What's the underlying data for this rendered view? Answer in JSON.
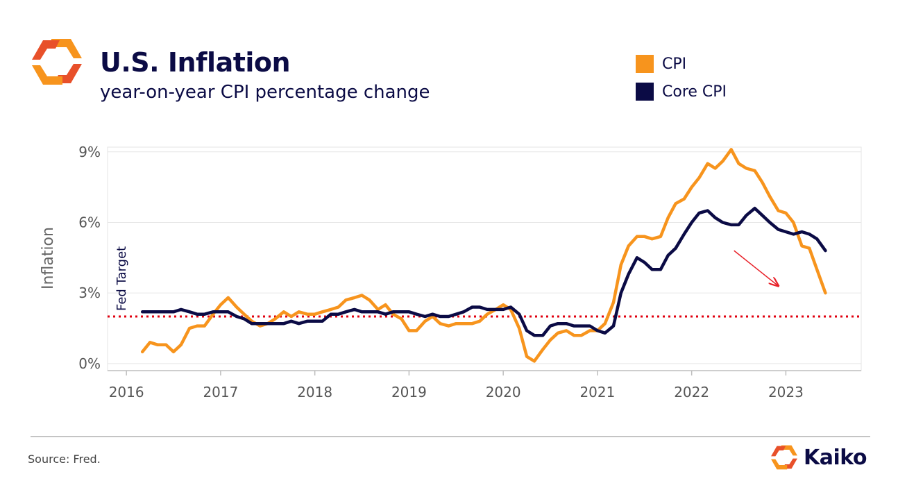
{
  "header": {
    "title": "U.S. Inflation",
    "subtitle": "year-on-year CPI percentage change"
  },
  "legend": [
    {
      "label": "CPI",
      "color": "#f7941d"
    },
    {
      "label": "Core CPI",
      "color": "#0b0b45"
    }
  ],
  "footer": {
    "source": "Source: Fred.",
    "brand": "Kaiko"
  },
  "colors": {
    "cpi": "#f7941d",
    "core": "#0b0b45",
    "target": "#e0000f",
    "arrow": "#e8222a",
    "logo_orange": "#f7941d",
    "logo_red": "#e8502a"
  },
  "icons": {
    "logo": "kaiko-logo-icon"
  },
  "chart_data": {
    "type": "line",
    "ylabel": "Inflation",
    "yticks": [
      0,
      3,
      6,
      9
    ],
    "ytick_labels": [
      "0%",
      "3%",
      "6%",
      "9%"
    ],
    "ylim": [
      -0.3,
      9.2
    ],
    "xlim": [
      2015.8,
      2023.8
    ],
    "xticks": [
      2016,
      2017,
      2018,
      2019,
      2020,
      2021,
      2022,
      2023
    ],
    "xtick_labels": [
      "2016",
      "2017",
      "2018",
      "2019",
      "2020",
      "2021",
      "2022",
      "2023"
    ],
    "grid": "horizontal",
    "legend_position": "top-right",
    "annotations": [
      {
        "type": "hline",
        "y": 2.0,
        "label": "Fed Target",
        "style": "dotted"
      },
      {
        "type": "arrow",
        "from": [
          2022.45,
          4.8
        ],
        "to": [
          2022.92,
          3.3
        ]
      }
    ],
    "series": [
      {
        "name": "CPI",
        "x": [
          2016.17,
          2016.25,
          2016.33,
          2016.42,
          2016.5,
          2016.58,
          2016.67,
          2016.75,
          2016.83,
          2016.92,
          2017.0,
          2017.08,
          2017.17,
          2017.25,
          2017.33,
          2017.42,
          2017.5,
          2017.58,
          2017.67,
          2017.75,
          2017.83,
          2017.92,
          2018.0,
          2018.08,
          2018.17,
          2018.25,
          2018.33,
          2018.42,
          2018.5,
          2018.58,
          2018.67,
          2018.75,
          2018.83,
          2018.92,
          2019.0,
          2019.08,
          2019.17,
          2019.25,
          2019.33,
          2019.42,
          2019.5,
          2019.58,
          2019.67,
          2019.75,
          2019.83,
          2019.92,
          2020.0,
          2020.08,
          2020.17,
          2020.25,
          2020.33,
          2020.42,
          2020.5,
          2020.58,
          2020.67,
          2020.75,
          2020.83,
          2020.92,
          2021.0,
          2021.08,
          2021.17,
          2021.25,
          2021.33,
          2021.42,
          2021.5,
          2021.58,
          2021.67,
          2021.75,
          2021.83,
          2021.92,
          2022.0,
          2022.08,
          2022.17,
          2022.25,
          2022.33,
          2022.42,
          2022.5,
          2022.58,
          2022.67,
          2022.75,
          2022.83,
          2022.92,
          2023.0,
          2023.08,
          2023.17,
          2023.25,
          2023.33,
          2023.42
        ],
        "values": [
          0.5,
          0.9,
          0.8,
          0.8,
          0.5,
          0.8,
          1.5,
          1.6,
          1.6,
          2.1,
          2.5,
          2.8,
          2.4,
          2.1,
          1.8,
          1.6,
          1.7,
          1.9,
          2.2,
          2.0,
          2.2,
          2.1,
          2.1,
          2.2,
          2.3,
          2.4,
          2.7,
          2.8,
          2.9,
          2.7,
          2.3,
          2.5,
          2.1,
          1.9,
          1.4,
          1.4,
          1.8,
          2.0,
          1.7,
          1.6,
          1.7,
          1.7,
          1.7,
          1.8,
          2.1,
          2.3,
          2.5,
          2.3,
          1.5,
          0.3,
          0.1,
          0.6,
          1.0,
          1.3,
          1.4,
          1.2,
          1.2,
          1.4,
          1.4,
          1.7,
          2.6,
          4.2,
          5.0,
          5.4,
          5.4,
          5.3,
          5.4,
          6.2,
          6.8,
          7.0,
          7.5,
          7.9,
          8.5,
          8.3,
          8.6,
          9.1,
          8.5,
          8.3,
          8.2,
          7.7,
          7.1,
          6.5,
          6.4,
          6.0,
          5.0,
          4.9,
          4.0,
          3.0
        ]
      },
      {
        "name": "Core CPI",
        "x": [
          2016.17,
          2016.25,
          2016.33,
          2016.42,
          2016.5,
          2016.58,
          2016.67,
          2016.75,
          2016.83,
          2016.92,
          2017.0,
          2017.08,
          2017.17,
          2017.25,
          2017.33,
          2017.42,
          2017.5,
          2017.58,
          2017.67,
          2017.75,
          2017.83,
          2017.92,
          2018.0,
          2018.08,
          2018.17,
          2018.25,
          2018.33,
          2018.42,
          2018.5,
          2018.58,
          2018.67,
          2018.75,
          2018.83,
          2018.92,
          2019.0,
          2019.08,
          2019.17,
          2019.25,
          2019.33,
          2019.42,
          2019.5,
          2019.58,
          2019.67,
          2019.75,
          2019.83,
          2019.92,
          2020.0,
          2020.08,
          2020.17,
          2020.25,
          2020.33,
          2020.42,
          2020.5,
          2020.58,
          2020.67,
          2020.75,
          2020.83,
          2020.92,
          2021.0,
          2021.08,
          2021.17,
          2021.25,
          2021.33,
          2021.42,
          2021.5,
          2021.58,
          2021.67,
          2021.75,
          2021.83,
          2021.92,
          2022.0,
          2022.08,
          2022.17,
          2022.25,
          2022.33,
          2022.42,
          2022.5,
          2022.58,
          2022.67,
          2022.75,
          2022.83,
          2022.92,
          2023.0,
          2023.08,
          2023.17,
          2023.25,
          2023.33,
          2023.42
        ],
        "values": [
          2.2,
          2.2,
          2.2,
          2.2,
          2.2,
          2.3,
          2.2,
          2.1,
          2.1,
          2.2,
          2.2,
          2.2,
          2.0,
          1.9,
          1.7,
          1.7,
          1.7,
          1.7,
          1.7,
          1.8,
          1.7,
          1.8,
          1.8,
          1.8,
          2.1,
          2.1,
          2.2,
          2.3,
          2.2,
          2.2,
          2.2,
          2.1,
          2.2,
          2.2,
          2.2,
          2.1,
          2.0,
          2.1,
          2.0,
          2.0,
          2.1,
          2.2,
          2.4,
          2.4,
          2.3,
          2.3,
          2.3,
          2.4,
          2.1,
          1.4,
          1.2,
          1.2,
          1.6,
          1.7,
          1.7,
          1.6,
          1.6,
          1.6,
          1.4,
          1.3,
          1.6,
          3.0,
          3.8,
          4.5,
          4.3,
          4.0,
          4.0,
          4.6,
          4.9,
          5.5,
          6.0,
          6.4,
          6.5,
          6.2,
          6.0,
          5.9,
          5.9,
          6.3,
          6.6,
          6.3,
          6.0,
          5.7,
          5.6,
          5.5,
          5.6,
          5.5,
          5.3,
          4.8
        ]
      }
    ]
  }
}
